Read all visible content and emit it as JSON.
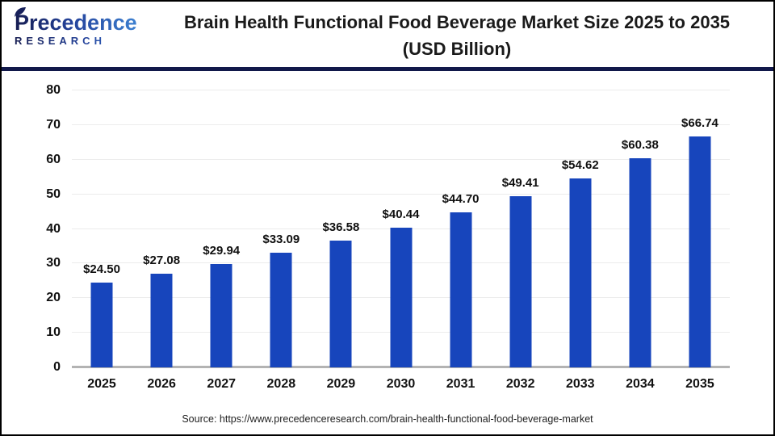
{
  "header": {
    "logo": {
      "brand": "Precedence",
      "sub": "RESEARCH"
    },
    "title_line1": "Brain Health Functional Food Beverage Market Size 2025 to 2035",
    "title_line2": "(USD Billion)"
  },
  "chart_data": {
    "type": "bar",
    "title": "Brain Health Functional Food Beverage Market Size 2025 to 2035 (USD Billion)",
    "categories": [
      "2025",
      "2026",
      "2027",
      "2028",
      "2029",
      "2030",
      "2031",
      "2032",
      "2033",
      "2034",
      "2035"
    ],
    "values": [
      24.5,
      27.08,
      29.94,
      33.09,
      36.58,
      40.44,
      44.7,
      49.41,
      54.62,
      60.38,
      66.74
    ],
    "value_labels": [
      "$24.50",
      "$27.08",
      "$29.94",
      "$33.09",
      "$36.58",
      "$40.44",
      "$44.70",
      "$49.41",
      "$54.62",
      "$60.38",
      "$66.74"
    ],
    "xlabel": "",
    "ylabel": "",
    "ylim": [
      0,
      80
    ],
    "yticks": [
      0,
      10,
      20,
      30,
      40,
      50,
      60,
      70,
      80
    ],
    "grid": true,
    "legend": "none",
    "bar_color": "#1745BC"
  },
  "colors": {
    "bar": "#1745BC",
    "divider_navy": "#11184a",
    "logo_navy": "#161d52",
    "logo_blue": "#3e86d6",
    "gridline": "#ececec",
    "axis_line": "#b3b3b3"
  },
  "footer": {
    "source": "Source: https://www.precedenceresearch.com/brain-health-functional-food-beverage-market"
  }
}
